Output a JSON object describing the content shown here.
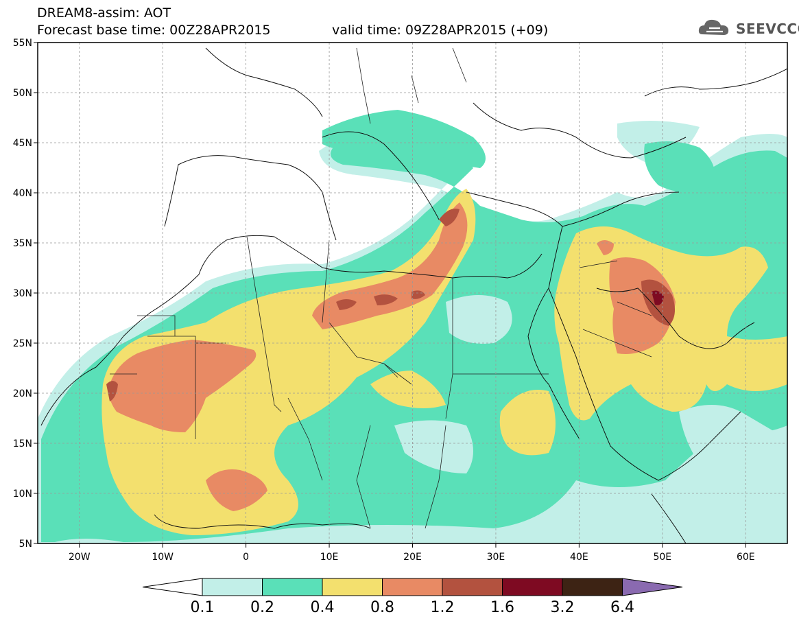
{
  "header": {
    "title": "DREAM8-assim: AOT",
    "base_time": "Forecast base time: 00Z28APR2015",
    "valid_time": "valid time: 09Z28APR2015 (+09)"
  },
  "logo": {
    "text": "SEEVCCC",
    "icon": "cloud-icon"
  },
  "map": {
    "lon_range": [
      -25,
      65
    ],
    "lat_range": [
      5,
      55
    ],
    "x_ticks": [
      "20W",
      "10W",
      "0",
      "10E",
      "20E",
      "30E",
      "40E",
      "50E",
      "60E"
    ],
    "y_ticks": [
      "55N",
      "50N",
      "45N",
      "40N",
      "35N",
      "30N",
      "25N",
      "20N",
      "15N",
      "10N",
      "5N"
    ]
  },
  "colorbar": {
    "levels": [
      "0.1",
      "0.2",
      "0.4",
      "0.8",
      "1.2",
      "1.6",
      "3.2",
      "6.4"
    ],
    "colors": [
      "#c2efe8",
      "#5ae0b8",
      "#f3e06e",
      "#e88a64",
      "#b3523f",
      "#7e0a22",
      "#3d2314",
      "#8a6ab0"
    ]
  }
}
